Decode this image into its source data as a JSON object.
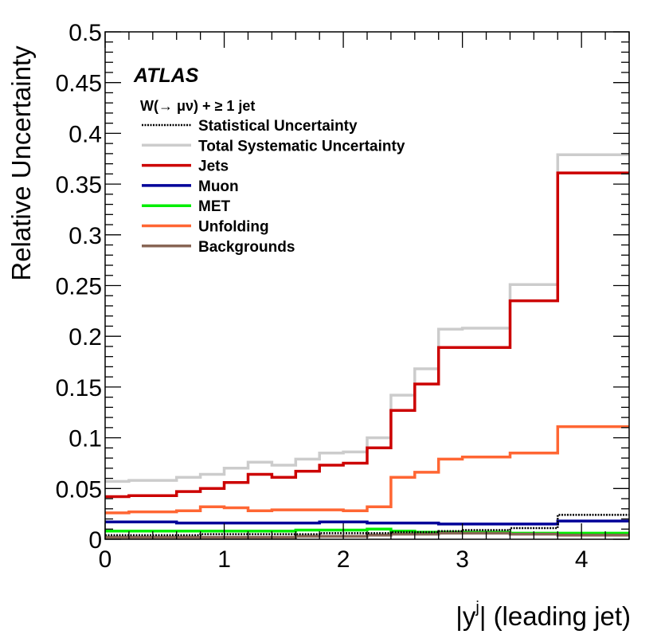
{
  "chart_data": {
    "type": "line",
    "title": "",
    "xlabel": "|y^j| (leading jet)",
    "xlabel_main": "|y",
    "xlabel_sup": "j",
    "xlabel_rest": "| (leading jet)",
    "ylabel": "Relative Uncertainty",
    "xlim": [
      0,
      4.4
    ],
    "ylim": [
      0,
      0.5
    ],
    "x_ticks": [
      0,
      1,
      2,
      3,
      4
    ],
    "x_tick_labels": [
      "0",
      "1",
      "2",
      "3",
      "4"
    ],
    "y_ticks": [
      0,
      0.05,
      0.1,
      0.15,
      0.2,
      0.25,
      0.3,
      0.35,
      0.4,
      0.45,
      0.5
    ],
    "y_tick_labels": [
      "0",
      "0.05",
      "0.1",
      "0.15",
      "0.2",
      "0.25",
      "0.3",
      "0.35",
      "0.4",
      "0.45",
      "0.5"
    ],
    "experiment_label": "ATLAS",
    "legend_header": "W(→ μν) + ≥ 1 jet",
    "legend_position": "top-left",
    "bin_edges": [
      0,
      0.2,
      0.4,
      0.6,
      0.8,
      1.0,
      1.2,
      1.4,
      1.6,
      1.8,
      2.0,
      2.2,
      2.4,
      2.6,
      2.8,
      3.0,
      3.4,
      3.8,
      4.4
    ],
    "series": [
      {
        "name": "Statistical Uncertainty",
        "color": "#000000",
        "style": "dotted",
        "values": [
          0.004,
          0.004,
          0.004,
          0.004,
          0.005,
          0.005,
          0.005,
          0.005,
          0.005,
          0.006,
          0.006,
          0.006,
          0.007,
          0.007,
          0.008,
          0.009,
          0.011,
          0.024
        ]
      },
      {
        "name": "Total Systematic Uncertainty",
        "color": "#cccccc",
        "style": "solid",
        "values": [
          0.057,
          0.058,
          0.058,
          0.061,
          0.064,
          0.07,
          0.076,
          0.073,
          0.079,
          0.085,
          0.086,
          0.1,
          0.142,
          0.168,
          0.207,
          0.208,
          0.251,
          0.379
        ]
      },
      {
        "name": "Jets",
        "color": "#cc0000",
        "style": "solid",
        "values": [
          0.042,
          0.043,
          0.043,
          0.047,
          0.05,
          0.056,
          0.064,
          0.061,
          0.067,
          0.073,
          0.075,
          0.09,
          0.127,
          0.153,
          0.189,
          0.189,
          0.235,
          0.361
        ]
      },
      {
        "name": "Muon",
        "color": "#000099",
        "style": "solid",
        "values": [
          0.017,
          0.017,
          0.017,
          0.016,
          0.016,
          0.016,
          0.016,
          0.016,
          0.016,
          0.017,
          0.017,
          0.016,
          0.016,
          0.016,
          0.015,
          0.015,
          0.015,
          0.018
        ]
      },
      {
        "name": "MET",
        "color": "#00ee00",
        "style": "solid",
        "values": [
          0.008,
          0.008,
          0.008,
          0.008,
          0.008,
          0.008,
          0.008,
          0.008,
          0.009,
          0.009,
          0.009,
          0.01,
          0.008,
          0.007,
          0.007,
          0.007,
          0.006,
          0.006
        ]
      },
      {
        "name": "Unfolding",
        "color": "#ff6633",
        "style": "solid",
        "values": [
          0.026,
          0.027,
          0.027,
          0.028,
          0.032,
          0.031,
          0.028,
          0.029,
          0.029,
          0.029,
          0.028,
          0.032,
          0.061,
          0.066,
          0.079,
          0.081,
          0.085,
          0.111
        ]
      },
      {
        "name": "Backgrounds",
        "color": "#886655",
        "style": "solid",
        "values": [
          0.002,
          0.002,
          0.002,
          0.002,
          0.002,
          0.002,
          0.002,
          0.002,
          0.003,
          0.003,
          0.003,
          0.004,
          0.005,
          0.005,
          0.006,
          0.006,
          0.005,
          0.004
        ]
      }
    ]
  }
}
